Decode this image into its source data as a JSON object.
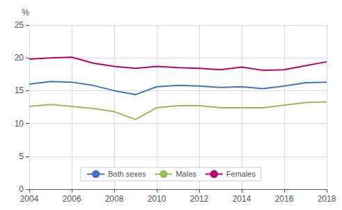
{
  "chart_data": {
    "type": "line",
    "ylabel": "%",
    "x": [
      2004,
      2005,
      2006,
      2007,
      2008,
      2009,
      2010,
      2011,
      2012,
      2013,
      2014,
      2015,
      2016,
      2017,
      2018
    ],
    "series": [
      {
        "name": "Both sexes",
        "color": "#4472C4",
        "values": [
          16.0,
          16.4,
          16.3,
          15.8,
          15.0,
          14.4,
          15.6,
          15.8,
          15.7,
          15.5,
          15.6,
          15.3,
          15.7,
          16.2,
          16.3
        ]
      },
      {
        "name": "Males",
        "color": "#9BBB59",
        "values": [
          12.6,
          12.9,
          12.6,
          12.3,
          11.8,
          10.6,
          12.4,
          12.7,
          12.7,
          12.4,
          12.4,
          12.4,
          12.8,
          13.2,
          13.3
        ]
      },
      {
        "name": "Females",
        "color": "#BE006B",
        "values": [
          19.8,
          20.0,
          20.1,
          19.2,
          18.7,
          18.4,
          18.7,
          18.5,
          18.4,
          18.2,
          18.6,
          18.1,
          18.2,
          18.8,
          19.4
        ]
      }
    ],
    "xlim": [
      2004,
      2018
    ],
    "xticks": [
      2004,
      2006,
      2008,
      2010,
      2012,
      2014,
      2016,
      2018
    ],
    "ylim": [
      0,
      25
    ],
    "yticks": [
      0,
      5,
      10,
      15,
      20,
      25
    ],
    "grid": true,
    "legend": "bottom"
  }
}
